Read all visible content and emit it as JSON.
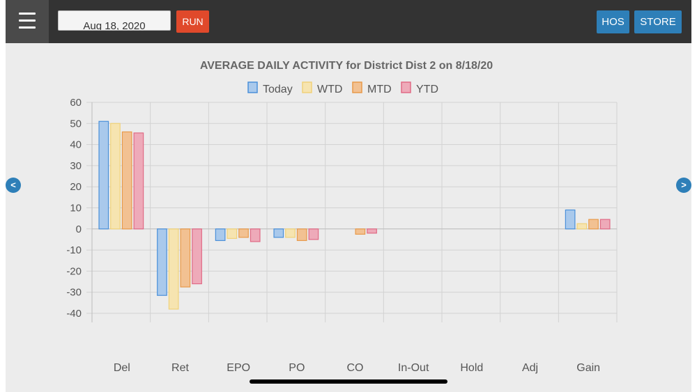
{
  "header": {
    "date_value": "Aug 18, 2020",
    "run_label": "RUN",
    "hos_label": "HOS",
    "store_label": "STORE"
  },
  "nav": {
    "prev_label": "<",
    "next_label": ">"
  },
  "colors": {
    "topbar": "#333333",
    "run_button": "#e0492b",
    "action_button": "#2e7fb8",
    "background": "#ececec"
  },
  "chart_data": {
    "type": "bar",
    "title": "AVERAGE DAILY ACTIVITY for District Dist 2 on 8/18/20",
    "legend_position": "top",
    "grid": true,
    "ylim": [
      -40,
      60
    ],
    "yticks": [
      60,
      50,
      40,
      30,
      20,
      10,
      0,
      -10,
      -20,
      -30,
      -40
    ],
    "categories": [
      "Del",
      "Ret",
      "EPO",
      "PO",
      "CO",
      "In-Out",
      "Hold",
      "Adj",
      "Gain"
    ],
    "series": [
      {
        "name": "Today",
        "color": "#4a90d9",
        "fill": "#a9c9ec",
        "values": [
          51,
          -31.5,
          -5.5,
          -4,
          0,
          0,
          0,
          0,
          9
        ]
      },
      {
        "name": "WTD",
        "color": "#f0d27a",
        "fill": "#f6e4b0",
        "values": [
          50,
          -38,
          -4.5,
          -4,
          0,
          0,
          0,
          0,
          2.5
        ]
      },
      {
        "name": "MTD",
        "color": "#e89a4a",
        "fill": "#f2c192",
        "values": [
          46,
          -27.5,
          -4,
          -5.5,
          -2.5,
          0,
          0,
          0,
          4.5
        ]
      },
      {
        "name": "YTD",
        "color": "#e06a85",
        "fill": "#eeaab9",
        "values": [
          45.5,
          -26,
          -6,
          -5,
          -2,
          0,
          0,
          0,
          4.5
        ]
      }
    ]
  }
}
